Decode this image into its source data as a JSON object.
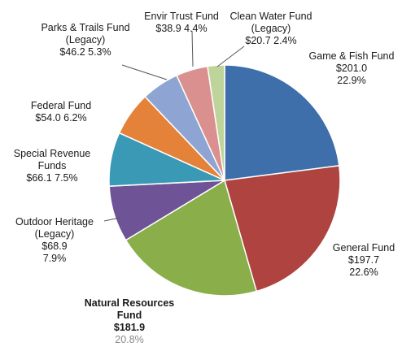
{
  "chart_data": {
    "type": "pie",
    "title": "",
    "slices": [
      {
        "label_lines": [
          "Game & Fish Fund"
        ],
        "value": 201.0,
        "value_text": "$201.0",
        "percent": 22.9,
        "percent_text": "22.9%",
        "color": "#3F6FAA"
      },
      {
        "label_lines": [
          "General Fund"
        ],
        "value": 197.7,
        "value_text": "$197.7",
        "percent": 22.6,
        "percent_text": "22.6%",
        "color": "#AE4340"
      },
      {
        "label_lines": [
          "Natural Resources",
          "Fund"
        ],
        "value": 181.9,
        "value_text": "$181.9",
        "percent": 20.8,
        "percent_text": "20.8%",
        "color": "#8AAE4A"
      },
      {
        "label_lines": [
          "Outdoor Heritage",
          "(Legacy)"
        ],
        "value": 68.9,
        "value_text": "$68.9",
        "percent": 7.9,
        "percent_text": "7.9%",
        "color": "#6E5396"
      },
      {
        "label_lines": [
          "Special Revenue",
          "Funds"
        ],
        "value": 66.1,
        "value_text": "$66.1",
        "percent": 7.5,
        "percent_text": "7.5%",
        "color": "#3A99B4"
      },
      {
        "label_lines": [
          "Federal Fund"
        ],
        "value": 54.0,
        "value_text": "$54.0",
        "percent": 6.2,
        "percent_text": "6.2%",
        "color": "#E5823A"
      },
      {
        "label_lines": [
          "Parks & Trails Fund",
          "(Legacy)"
        ],
        "value": 46.2,
        "value_text": "$46.2",
        "percent": 5.3,
        "percent_text": "5.3%",
        "color": "#8EA4D2"
      },
      {
        "label_lines": [
          "Envir Trust Fund"
        ],
        "value": 38.9,
        "value_text": "$38.9",
        "percent": 4.4,
        "percent_text": "4.4%",
        "color": "#D9908E"
      },
      {
        "label_lines": [
          "Clean Water Fund",
          "(Legacy)"
        ],
        "value": 20.7,
        "value_text": "$20.7",
        "percent": 2.4,
        "percent_text": "2.4%",
        "color": "#BFD49A"
      }
    ]
  }
}
